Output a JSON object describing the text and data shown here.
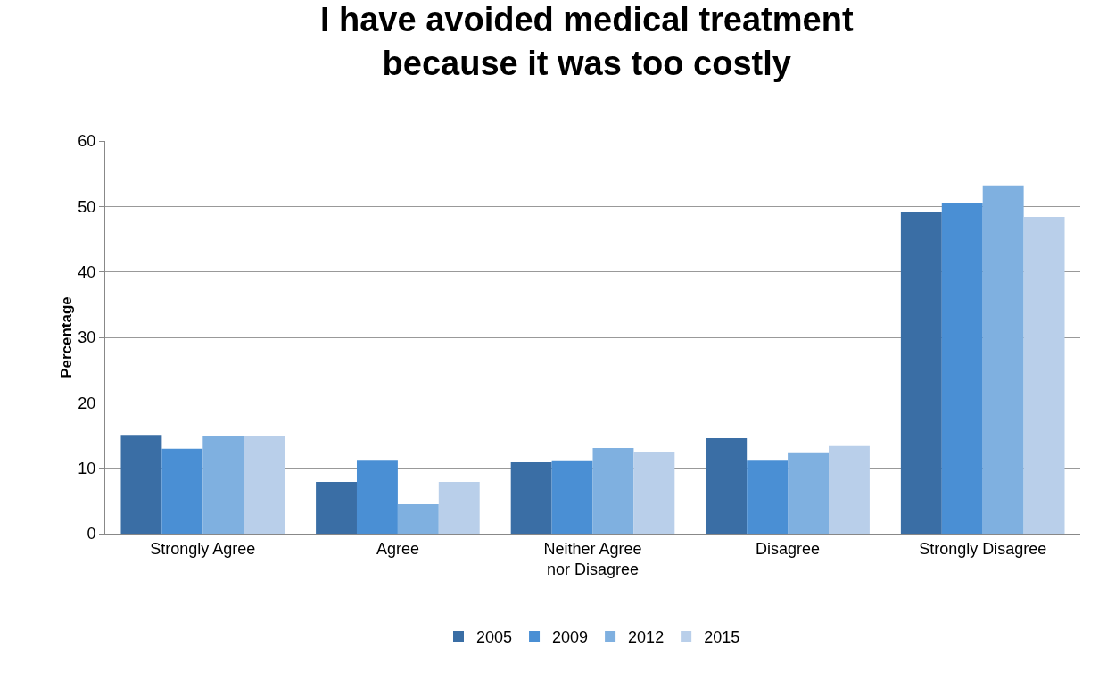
{
  "chart_data": {
    "type": "bar",
    "title": "I have avoided medical treatment because it was too costly",
    "ylabel": "Percentage",
    "categories": [
      "Strongly Agree",
      "Agree",
      "Neither Agree nor Disagree",
      "Disagree",
      "Strongly Disagree"
    ],
    "series": [
      {
        "name": "2005",
        "color": "#3a6ea5",
        "values": [
          15.1,
          7.9,
          10.9,
          14.6,
          49.2
        ]
      },
      {
        "name": "2009",
        "color": "#4a8fd4",
        "values": [
          13.0,
          11.3,
          11.2,
          11.3,
          50.5
        ]
      },
      {
        "name": "2012",
        "color": "#7fb0e0",
        "values": [
          15.0,
          4.5,
          13.1,
          12.3,
          53.2
        ]
      },
      {
        "name": "2015",
        "color": "#b9cfea",
        "values": [
          14.9,
          7.9,
          12.4,
          13.4,
          48.4
        ]
      }
    ],
    "ylim": [
      0,
      60
    ],
    "yticks": [
      0,
      10,
      20,
      30,
      40,
      50,
      60
    ],
    "grid": "y",
    "legend": "bottom"
  }
}
